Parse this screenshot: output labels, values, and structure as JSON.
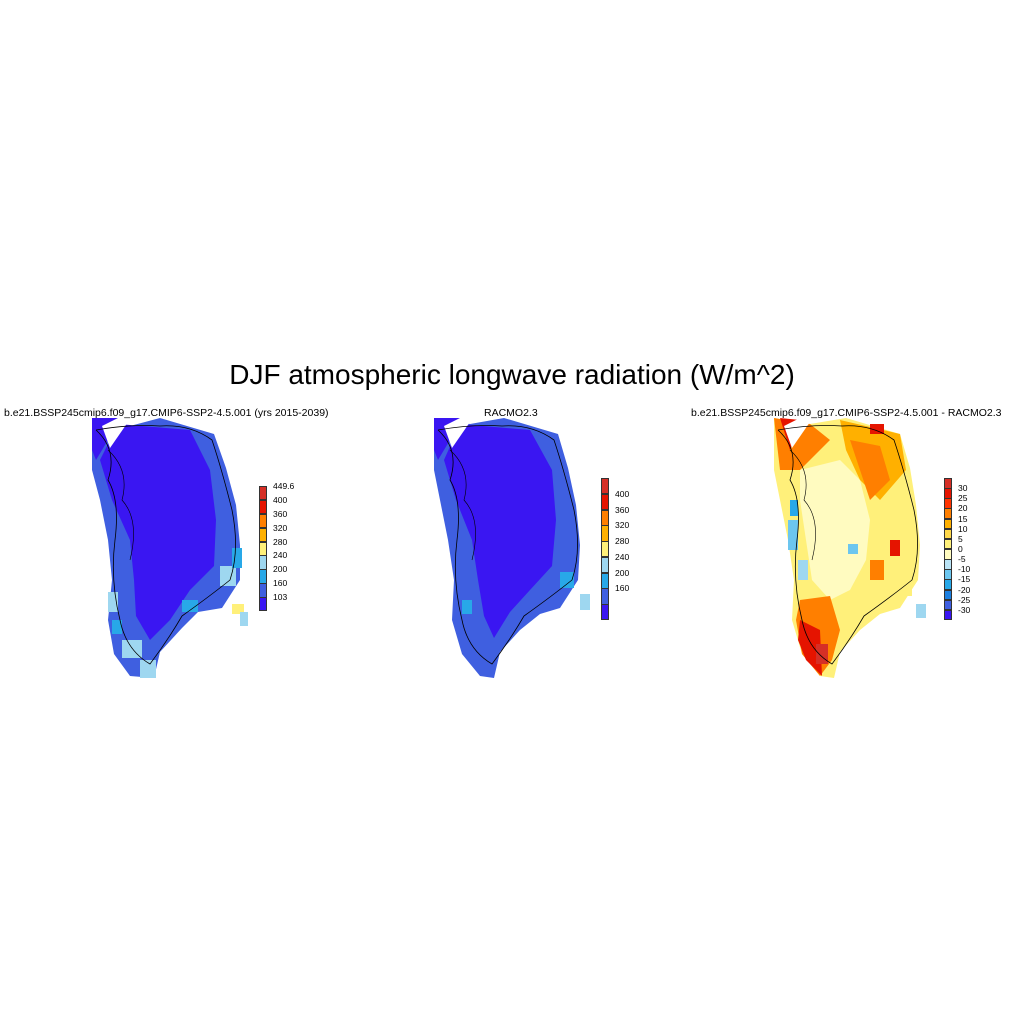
{
  "title": "DJF atmospheric longwave radiation (W/m^2)",
  "panels": [
    {
      "title": "b.e21.BSSP245cmip6.f09_g17.CMIP6-SSP2-4.5.001 (yrs 2015-2039)",
      "legend": {
        "labels": [
          "449.6",
          "400",
          "360",
          "320",
          "280",
          "240",
          "200",
          "160",
          "103"
        ],
        "colors": [
          "#d62f26",
          "#e51400",
          "#ff7f00",
          "#ffb000",
          "#fff07a",
          "#9ed7f0",
          "#28a8e8",
          "#3f5fe0",
          "#3a16f2"
        ]
      }
    },
    {
      "title": "RACMO2.3",
      "legend": {
        "labels": [
          "400",
          "360",
          "320",
          "280",
          "240",
          "200",
          "160"
        ],
        "colors": [
          "#d62f26",
          "#e51400",
          "#ff7f00",
          "#ffb000",
          "#fff07a",
          "#9ed7f0",
          "#28a8e8",
          "#3f5fe0",
          "#3a16f2"
        ]
      }
    },
    {
      "title": "b.e21.BSSP245cmip6.f09_g17.CMIP6-SSP2-4.5.001 - RACMO2.3",
      "legend": {
        "labels": [
          "30",
          "25",
          "20",
          "15",
          "10",
          "5",
          "0",
          "-5",
          "-10",
          "-15",
          "-20",
          "-25",
          "-30"
        ],
        "colors": [
          "#d62f26",
          "#e51400",
          "#ff3300",
          "#ff7f00",
          "#ffb000",
          "#ffd84a",
          "#fff07a",
          "#fffbc0",
          "#b9e3f5",
          "#6cc6ef",
          "#28a8e8",
          "#1c7fe0",
          "#3f5fe0",
          "#3a16f2"
        ]
      }
    }
  ]
}
